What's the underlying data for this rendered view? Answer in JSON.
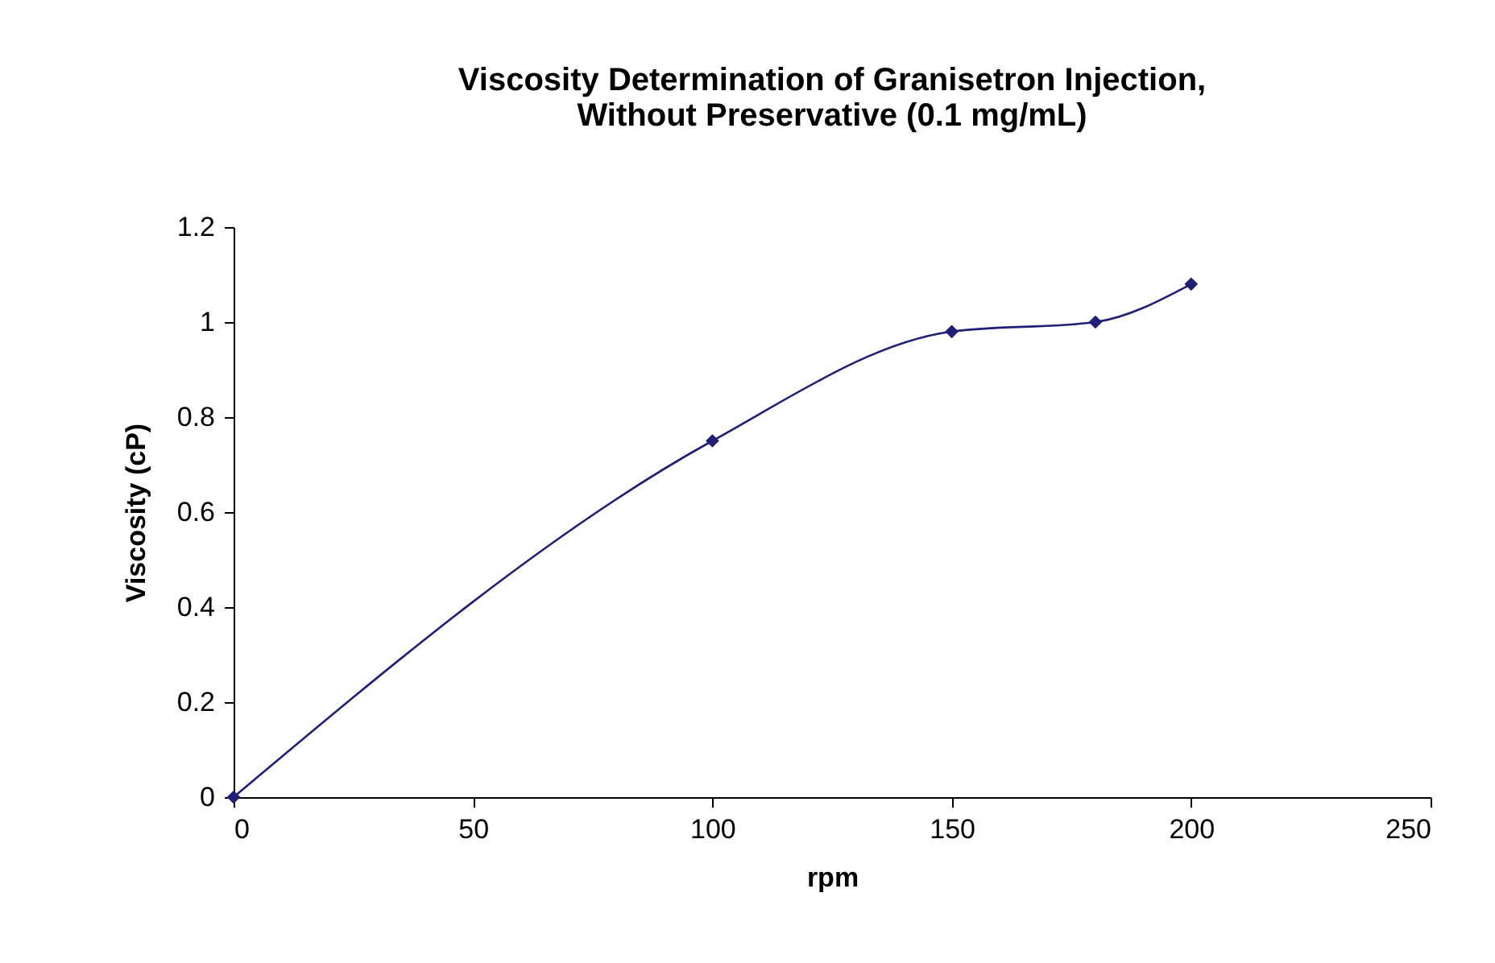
{
  "chart_data": {
    "type": "line",
    "title": "Viscosity Determination of Granisetron Injection,\nWithout Preservative (0.1 mg/mL)",
    "xlabel": "rpm",
    "ylabel": "Viscosity (cP)",
    "x": [
      0,
      100,
      150,
      180,
      200
    ],
    "series": [
      {
        "color": "#1f1f78",
        "values": [
          0,
          0.75,
          0.98,
          1.0,
          1.08
        ]
      }
    ],
    "xlim": [
      0,
      250
    ],
    "xticks": [
      0,
      50,
      100,
      150,
      200,
      250
    ],
    "ylim": [
      0,
      1.2
    ],
    "yticks": [
      0,
      0.2,
      0.4,
      0.6,
      0.8,
      1,
      1.2
    ],
    "grid": false,
    "marker": "diamond",
    "line_style": "solid"
  }
}
